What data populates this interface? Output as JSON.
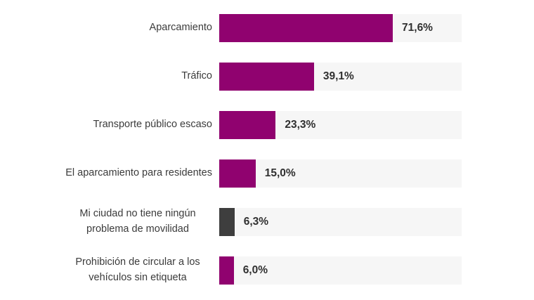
{
  "chart_data": {
    "type": "bar",
    "orientation": "horizontal",
    "title": "",
    "xlabel": "",
    "ylabel": "",
    "xlim": [
      0,
      100
    ],
    "grid": false,
    "legend": false,
    "categories": [
      "Aparcamiento",
      "Tráfico",
      "Transporte público escaso",
      "El aparcamiento para residentes",
      "Mi ciudad no tiene ningún problema de movilidad",
      "Prohibición de circular a los vehículos sin etiqueta"
    ],
    "values": [
      71.6,
      39.1,
      23.3,
      15.0,
      6.3,
      6.0
    ],
    "value_labels": [
      "71,6%",
      "39,1%",
      "23,3%",
      "15,0%",
      "6,3%",
      "6,0%"
    ],
    "bar_colors": [
      "#90026F",
      "#90026F",
      "#90026F",
      "#90026F",
      "#3E3E3E",
      "#90026F"
    ],
    "track_color": "#F6F6F6",
    "label_color": "#3B3B3B",
    "value_color": "#303030"
  }
}
